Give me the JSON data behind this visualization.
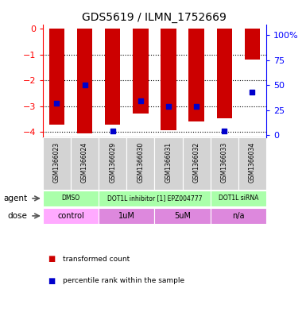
{
  "title": "GDS5619 / ILMN_1752669",
  "samples": [
    "GSM1366023",
    "GSM1366024",
    "GSM1366029",
    "GSM1366030",
    "GSM1366031",
    "GSM1366032",
    "GSM1366033",
    "GSM1366034"
  ],
  "transformed_count": [
    -3.72,
    -4.05,
    -3.72,
    -3.28,
    -3.92,
    -3.6,
    -3.48,
    -1.18
  ],
  "bar_top": [
    0,
    0,
    0,
    0,
    0,
    0,
    0,
    0
  ],
  "percentile_rank": [
    32,
    50,
    4,
    34,
    29,
    29,
    4,
    43
  ],
  "bar_color": "#cc0000",
  "dot_color": "#0000cc",
  "left_ylim": [
    -4.2,
    0.15
  ],
  "left_yticks": [
    0,
    -1,
    -2,
    -3,
    -4
  ],
  "right_ylim": [
    -2.0,
    110
  ],
  "right_yticks": [
    0,
    25,
    50,
    75,
    100
  ],
  "right_yticklabels": [
    "0",
    "25",
    "50",
    "75",
    "100%"
  ],
  "bg_color": "#ffffff",
  "sample_box_color": "#d3d3d3",
  "agent_defs": [
    {
      "label": "DMSO",
      "start": 0,
      "end": 2,
      "color": "#aaffaa"
    },
    {
      "label": "DOT1L inhibitor [1] EPZ004777",
      "start": 2,
      "end": 6,
      "color": "#aaffaa"
    },
    {
      "label": "DOT1L siRNA",
      "start": 6,
      "end": 8,
      "color": "#aaffaa"
    }
  ],
  "dose_defs": [
    {
      "label": "control",
      "start": 0,
      "end": 2,
      "color": "#ffaaff"
    },
    {
      "label": "1uM",
      "start": 2,
      "end": 4,
      "color": "#dd88dd"
    },
    {
      "label": "5uM",
      "start": 4,
      "end": 6,
      "color": "#dd88dd"
    },
    {
      "label": "n/a",
      "start": 6,
      "end": 8,
      "color": "#dd88dd"
    }
  ]
}
